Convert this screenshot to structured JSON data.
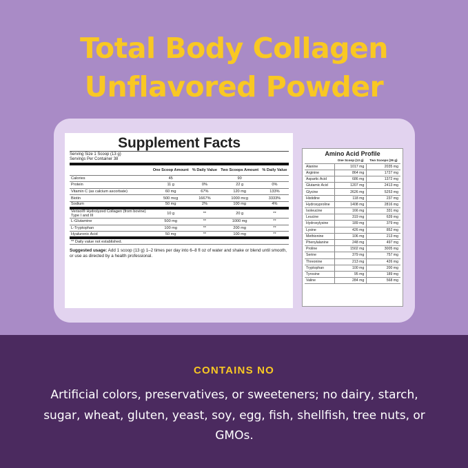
{
  "title_lines": [
    "Total Body Collagen",
    "Unflavored Powder"
  ],
  "supplement_facts": {
    "heading": "Supplement Facts",
    "serving_size": "Serving Size 1 Scoop (13 g)",
    "servings_per_container": "Servings Per Container 38",
    "columns": [
      "",
      "One Scoop Amount",
      "% Daily Value",
      "Two Scoops Amount",
      "% Daily Value"
    ],
    "rows": [
      [
        "Calories",
        "45",
        "",
        "90",
        ""
      ],
      [
        "Protein",
        "11 g",
        "0%",
        "22 g",
        "0%"
      ],
      [
        "Vitamin C (as calcium ascorbate)",
        "60 mg",
        "67%",
        "120 mg",
        "133%"
      ],
      [
        "Biotin",
        "500 mcg",
        "1667%",
        "1000 mcg",
        "3333%"
      ],
      [
        "Sodium",
        "50 mg",
        "2%",
        "100 mg",
        "4%"
      ]
    ],
    "rows2": [
      [
        "Verisol® Hydrolyzed Collagen (from bovine) Type I and III",
        "10 g",
        "**",
        "20 g",
        "**"
      ],
      [
        "L-Glutamine",
        "500 mg",
        "**",
        "1000 mg",
        "**"
      ],
      [
        "L-Tryptophan",
        "100 mg",
        "**",
        "200 mg",
        "**"
      ],
      [
        "Hyaluronic Acid",
        "50 mg",
        "**",
        "100 mg",
        "**"
      ]
    ],
    "footnote": "** Daily value not established.",
    "usage_label": "Suggested usage:",
    "usage_text": " Add 1 scoop (13 g) 1–2 times per day into 6–8 fl oz of water and shake or blend until smooth, or use as directed by a health professional."
  },
  "amino": {
    "heading": "Amino Acid Profile",
    "columns": [
      "",
      "One Scoop (13 g)",
      "Two Scoops (26 g)"
    ],
    "rows": [
      [
        "Alanine",
        "1017 mg",
        "2035 mg"
      ],
      [
        "Arginine",
        "864 mg",
        "1727 mg"
      ],
      [
        "Aspartic Acid",
        "686 mg",
        "1372 mg"
      ],
      [
        "Glutamic Acid",
        "1207 mg",
        "2413 mg"
      ],
      [
        "Glycine",
        "2626 mg",
        "5253 mg"
      ],
      [
        "Histidine",
        "118 mg",
        "237 mg"
      ],
      [
        "Hydroxyproline",
        "1408 mg",
        "2816 mg"
      ],
      [
        "Isoleucine",
        "166 mg",
        "331 mg"
      ],
      [
        "Leucine",
        "319 mg",
        "639 mg"
      ],
      [
        "Hydroxylysine",
        "189 mg",
        "379 mg"
      ],
      [
        "Lysine",
        "426 mg",
        "852 mg"
      ],
      [
        "Methionine",
        "106 mg",
        "213 mg"
      ],
      [
        "Phenylalanine",
        "248 mg",
        "497 mg"
      ],
      [
        "Proline",
        "1502 mg",
        "3005 mg"
      ],
      [
        "Serine",
        "379 mg",
        "757 mg"
      ],
      [
        "Threonine",
        "213 mg",
        "426 mg"
      ],
      [
        "Tryptophan",
        "100 mg",
        "200 mg"
      ],
      [
        "Tyrosine",
        "95 mg",
        "189 mg"
      ],
      [
        "Valine",
        "284 mg",
        "568 mg"
      ]
    ]
  },
  "contains_no": {
    "heading": "CONTAINS NO",
    "text": "Artificial colors, preservatives, or sweeteners; no dairy, starch, sugar, wheat, gluten, yeast, soy, egg, fish, shellfish, tree nuts, or GMOs."
  },
  "colors": {
    "top_bg": "#a98bc6",
    "bottom_bg": "#4b2a5f",
    "accent_yellow": "#f9c823",
    "panel": "#e2d3ef"
  }
}
